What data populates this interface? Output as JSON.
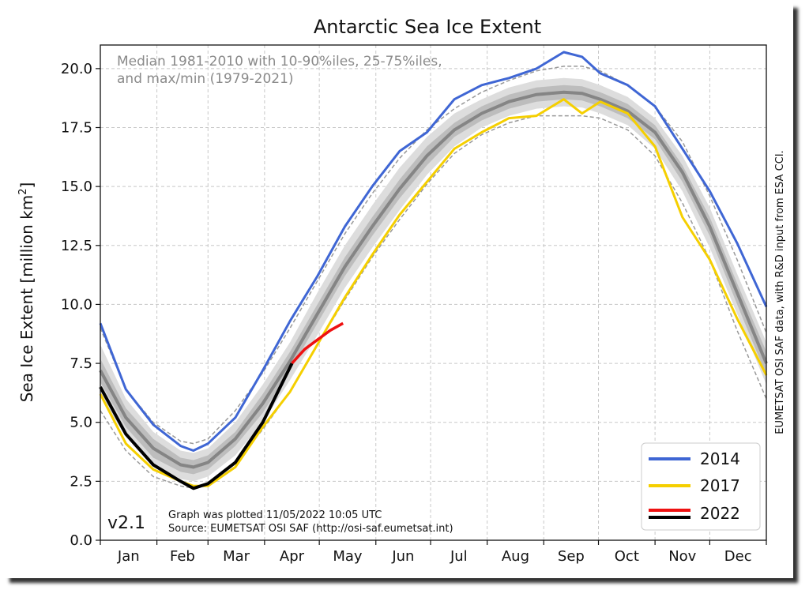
{
  "chart_data": {
    "type": "line",
    "title": "Antarctic Sea Ice Extent",
    "ylabel": "Sea Ice Extent [million km²]",
    "ylabel_parts": {
      "main": "Sea Ice Extent [million km",
      "sup": "2",
      "end": "]"
    },
    "xlabel": "",
    "ylim": [
      0,
      21
    ],
    "xlim": [
      1,
      366
    ],
    "yticks": [
      "0.0",
      "2.5",
      "5.0",
      "7.5",
      "10.0",
      "12.5",
      "15.0",
      "17.5",
      "20.0"
    ],
    "ytick_values": [
      0,
      2.5,
      5,
      7.5,
      10,
      12.5,
      15,
      17.5,
      20
    ],
    "months": [
      "Jan",
      "Feb",
      "Mar",
      "Apr",
      "May",
      "Jun",
      "Jul",
      "Aug",
      "Sep",
      "Oct",
      "Nov",
      "Dec"
    ],
    "grid": true,
    "legend_position": "bottom-right",
    "annotation_lines": [
      "Median 1981-2010 with 10-90%iles, 25-75%iles,",
      "and max/min (1979-2021)"
    ],
    "version": "v2.1",
    "plot_info": [
      "Graph was plotted 11/05/2022 10:05 UTC",
      "Source: EUMETSAT OSI SAF (http://osi-saf.eumetsat.int)"
    ],
    "side_note": "EUMETSAT OSI SAF data, with R&D input from ESA CCI.",
    "median": {
      "x": [
        1,
        15,
        30,
        45,
        52,
        60,
        75,
        90,
        105,
        120,
        135,
        150,
        165,
        180,
        195,
        210,
        225,
        240,
        255,
        265,
        275,
        290,
        305,
        320,
        335,
        350,
        366
      ],
      "y": [
        7.2,
        5.2,
        3.9,
        3.2,
        3.1,
        3.3,
        4.3,
        5.8,
        7.6,
        9.6,
        11.6,
        13.3,
        14.9,
        16.3,
        17.4,
        18.1,
        18.6,
        18.9,
        19.0,
        18.95,
        18.7,
        18.2,
        17.3,
        15.6,
        13.3,
        10.5,
        7.5
      ]
    },
    "band_10_90": {
      "lower": [
        6.1,
        4.4,
        3.2,
        2.6,
        2.5,
        2.7,
        3.6,
        5.0,
        6.8,
        8.7,
        10.7,
        12.4,
        14.0,
        15.5,
        16.7,
        17.5,
        18.0,
        18.3,
        18.4,
        18.35,
        18.1,
        17.6,
        16.6,
        14.8,
        12.4,
        9.6,
        6.6
      ],
      "upper": [
        8.3,
        6.0,
        4.6,
        3.8,
        3.7,
        3.9,
        5.0,
        6.6,
        8.4,
        10.5,
        12.5,
        14.2,
        15.8,
        17.1,
        18.1,
        18.7,
        19.2,
        19.5,
        19.6,
        19.55,
        19.3,
        18.8,
        17.9,
        16.3,
        14.1,
        11.3,
        8.4
      ]
    },
    "band_25_75": {
      "lower": [
        6.7,
        4.8,
        3.5,
        2.9,
        2.8,
        3.0,
        4.0,
        5.4,
        7.2,
        9.2,
        11.2,
        12.9,
        14.5,
        15.9,
        17.1,
        17.8,
        18.3,
        18.6,
        18.7,
        18.65,
        18.4,
        17.9,
        17.0,
        15.2,
        12.9,
        10.0,
        7.0
      ],
      "upper": [
        7.7,
        5.6,
        4.3,
        3.5,
        3.4,
        3.6,
        4.6,
        6.2,
        8.0,
        10.0,
        12.0,
        13.7,
        15.3,
        16.7,
        17.7,
        18.4,
        18.9,
        19.2,
        19.3,
        19.25,
        19.0,
        18.5,
        17.6,
        15.9,
        13.7,
        10.9,
        8.0
      ]
    },
    "max_min": {
      "max": [
        9.0,
        6.4,
        5.0,
        4.2,
        4.1,
        4.3,
        5.5,
        7.1,
        9.0,
        11.0,
        13.0,
        14.7,
        16.2,
        17.4,
        18.3,
        19.0,
        19.5,
        19.9,
        20.1,
        20.1,
        19.9,
        19.3,
        18.4,
        16.9,
        14.6,
        11.9,
        8.8
      ],
      "min": [
        5.5,
        3.8,
        2.7,
        2.3,
        2.2,
        2.4,
        3.3,
        4.7,
        6.3,
        8.3,
        10.2,
        12.0,
        13.6,
        15.1,
        16.4,
        17.2,
        17.7,
        18.0,
        18.0,
        18.0,
        17.9,
        17.4,
        16.3,
        14.3,
        11.9,
        8.9,
        6.0
      ]
    },
    "series": [
      {
        "name": "2014",
        "color": "#3f66d4",
        "x": [
          1,
          15,
          30,
          45,
          52,
          60,
          75,
          90,
          105,
          120,
          135,
          150,
          165,
          180,
          195,
          210,
          225,
          240,
          255,
          265,
          275,
          290,
          305,
          320,
          335,
          350,
          366
        ],
        "y": [
          9.2,
          6.4,
          4.9,
          4.0,
          3.8,
          4.1,
          5.2,
          7.2,
          9.3,
          11.2,
          13.3,
          15.0,
          16.5,
          17.3,
          18.7,
          19.3,
          19.6,
          20.0,
          20.7,
          20.5,
          19.8,
          19.3,
          18.4,
          16.6,
          14.8,
          12.6,
          9.9
        ]
      },
      {
        "name": "2017",
        "color": "#f5cf00",
        "x": [
          1,
          15,
          30,
          45,
          52,
          60,
          75,
          90,
          105,
          120,
          135,
          150,
          165,
          180,
          195,
          210,
          225,
          240,
          255,
          265,
          275,
          290,
          305,
          320,
          335,
          350,
          366
        ],
        "y": [
          6.2,
          4.1,
          3.0,
          2.5,
          2.3,
          2.3,
          3.1,
          4.8,
          6.3,
          8.3,
          10.3,
          12.1,
          13.8,
          15.2,
          16.6,
          17.3,
          17.9,
          18.0,
          18.7,
          18.1,
          18.6,
          18.1,
          16.7,
          13.7,
          11.9,
          9.4,
          7.0
        ]
      },
      {
        "name": "2022",
        "color": "#ee1111",
        "x": [
          106,
          113,
          120,
          127,
          134
        ],
        "y": [
          7.5,
          8.1,
          8.5,
          8.9,
          9.2
        ]
      },
      {
        "name": "",
        "color": "#000000",
        "x": [
          1,
          15,
          30,
          45,
          52,
          60,
          75,
          90,
          106
        ],
        "y": [
          6.5,
          4.5,
          3.2,
          2.5,
          2.2,
          2.4,
          3.3,
          5.0,
          7.5
        ]
      }
    ],
    "legend_entries": [
      {
        "label": "2014",
        "color": "#3f66d4"
      },
      {
        "label": "2017",
        "color": "#f5cf00"
      },
      {
        "label": "2022",
        "colors": [
          "#ee1111",
          "#000000"
        ]
      }
    ]
  }
}
